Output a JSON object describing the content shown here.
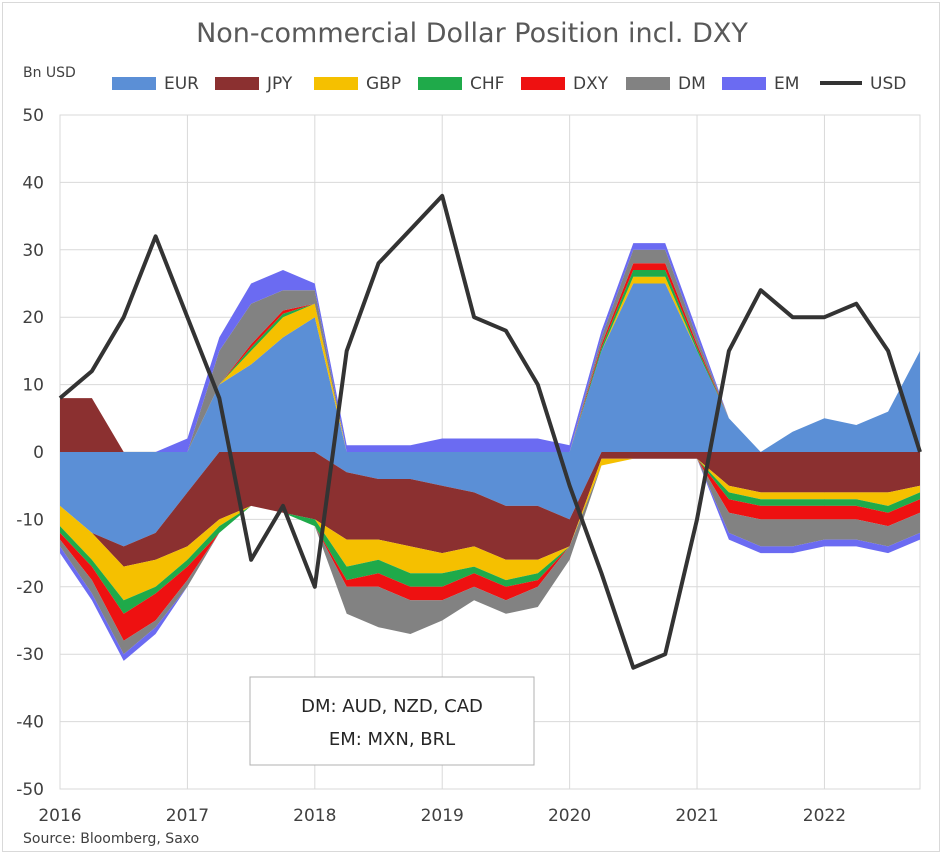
{
  "chart_data": {
    "type": "area",
    "title": "Non-commercial Dollar Position incl. DXY",
    "ylabel": "Bn USD",
    "source": "Source: Bloomberg, Saxo",
    "note": [
      "DM: AUD, NZD, CAD",
      "EM: MXN, BRL"
    ],
    "ylim": [
      -50,
      50
    ],
    "yticks": [
      50,
      40,
      30,
      20,
      10,
      0,
      -10,
      -20,
      -30,
      -40,
      -50
    ],
    "xlim": [
      2016.0,
      2022.75
    ],
    "xticks": [
      "2016",
      "2017",
      "2018",
      "2019",
      "2020",
      "2021",
      "2022"
    ],
    "grid": true,
    "legend_position": "top",
    "colors": {
      "EUR": "#5b8fd6",
      "JPY": "#8b3030",
      "GBP": "#f5c000",
      "CHF": "#1faa4a",
      "DXY": "#ee1111",
      "DM": "#828282",
      "EM": "#6b6bf2",
      "USD": "#333333"
    },
    "x": [
      2016.0,
      2016.25,
      2016.5,
      2016.75,
      2017.0,
      2017.25,
      2017.5,
      2017.75,
      2018.0,
      2018.25,
      2018.5,
      2018.75,
      2019.0,
      2019.25,
      2019.5,
      2019.75,
      2020.0,
      2020.25,
      2020.5,
      2020.75,
      2021.0,
      2021.25,
      2021.5,
      2021.75,
      2022.0,
      2022.25,
      2022.5,
      2022.75
    ],
    "series": [
      {
        "name": "EUR",
        "values": [
          -8,
          -12,
          -14,
          -12,
          -6,
          10,
          13,
          17,
          20,
          -3,
          -4,
          -4,
          -5,
          -6,
          -8,
          -8,
          -10,
          15,
          25,
          25,
          15,
          5,
          0,
          3,
          5,
          4,
          6,
          15
        ]
      },
      {
        "name": "JPY",
        "values": [
          8,
          8,
          -3,
          -4,
          -8,
          -10,
          -8,
          -9,
          -10,
          -10,
          -9,
          -10,
          -10,
          -8,
          -8,
          -8,
          -4,
          -1,
          -1,
          -1,
          -1,
          -5,
          -6,
          -6,
          -6,
          -6,
          -6,
          -5
        ]
      },
      {
        "name": "GBP",
        "values": [
          -3,
          -4,
          -5,
          -4,
          -2,
          -1,
          2,
          3,
          2,
          -4,
          -3,
          -4,
          -3,
          -3,
          -3,
          -2,
          0,
          -1,
          1,
          1,
          0,
          -1,
          -1,
          -1,
          -1,
          -1,
          -2,
          -1
        ]
      },
      {
        "name": "CHF",
        "values": [
          -1,
          -1,
          -2,
          -1,
          -1,
          -1,
          0.5,
          0.5,
          -1,
          -2,
          -2,
          -2,
          -2,
          -1,
          -1,
          -1,
          0,
          0.5,
          1,
          1,
          0.5,
          -1,
          -1,
          -1,
          -1,
          -1,
          -1,
          -1
        ]
      },
      {
        "name": "DXY",
        "values": [
          -1,
          -2,
          -4,
          -4,
          -2,
          0,
          0.5,
          0.5,
          0,
          -1,
          -2,
          -2,
          -2,
          -2,
          -2,
          -1,
          0,
          0.5,
          1,
          1,
          0.5,
          -2,
          -2,
          -2,
          -2,
          -2,
          -2,
          -2
        ]
      },
      {
        "name": "DM",
        "values": [
          -1,
          -2,
          -2,
          -1,
          -1,
          5,
          6,
          3,
          2,
          -4,
          -6,
          -5,
          -3,
          -2,
          -2,
          -3,
          -2,
          1,
          2,
          2,
          1,
          -3,
          -4,
          -4,
          -3,
          -3,
          -3,
          -3
        ]
      },
      {
        "name": "EM",
        "values": [
          -1,
          -1,
          -1,
          -1,
          2,
          2,
          3,
          3,
          1,
          1,
          1,
          1,
          2,
          2,
          2,
          2,
          1,
          1,
          1,
          1,
          1,
          -1,
          -1,
          -1,
          -1,
          -1,
          -1,
          -1
        ]
      },
      {
        "name": "USD",
        "values": [
          8,
          12,
          20,
          32,
          20,
          8,
          -16,
          -8,
          -20,
          15,
          28,
          33,
          38,
          20,
          18,
          10,
          -5,
          -18,
          -32,
          -30,
          -10,
          15,
          24,
          20,
          20,
          22,
          15,
          0
        ]
      }
    ]
  }
}
